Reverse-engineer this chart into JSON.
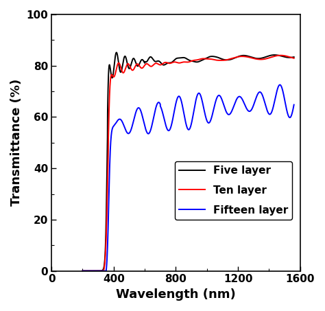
{
  "title": "",
  "xlabel": "Wavelength (nm)",
  "ylabel": "Transmittance (%)",
  "xlim": [
    0,
    1600
  ],
  "ylim": [
    0,
    100
  ],
  "xticks": [
    0,
    400,
    800,
    1200,
    1600
  ],
  "yticks": [
    0,
    20,
    40,
    60,
    80,
    100
  ],
  "legend": [
    {
      "label": "Five layer",
      "color": "#000000"
    },
    {
      "label": "Ten layer",
      "color": "#ff0000"
    },
    {
      "label": "Fifteen layer",
      "color": "#0000ff"
    }
  ],
  "background_color": "#ffffff",
  "linewidth": 1.4
}
